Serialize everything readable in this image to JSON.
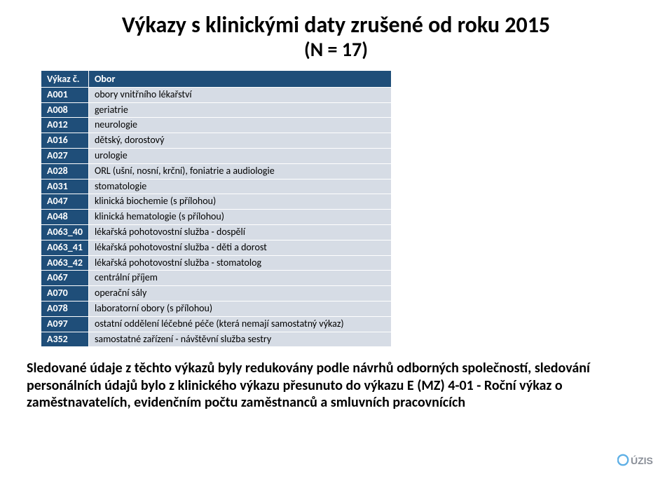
{
  "title": "Výkazy s klinickými daty zrušené od roku 2015",
  "subtitle": "(N = 17)",
  "table": {
    "header": {
      "code": "Výkaz č.",
      "obor": "Obor"
    },
    "header_bg": "#1f4e79",
    "header_fg": "#ffffff",
    "code_col_bg": "#1f4e79",
    "code_col_fg": "#ffffff",
    "obor_col_bg": "#d6dce5",
    "obor_col_fg": "#000000",
    "font_size": 14,
    "rows": [
      {
        "code": "A001",
        "obor": "obory vnitřního lékařství"
      },
      {
        "code": "A008",
        "obor": "geriatrie"
      },
      {
        "code": "A012",
        "obor": "neurologie"
      },
      {
        "code": "A016",
        "obor": "dětský, dorostový"
      },
      {
        "code": "A027",
        "obor": "urologie"
      },
      {
        "code": "A028",
        "obor": "ORL (ušní, nosní, krční), foniatrie a audiologie"
      },
      {
        "code": "A031",
        "obor": "stomatologie"
      },
      {
        "code": "A047",
        "obor": "klinická biochemie (s přílohou)"
      },
      {
        "code": "A048",
        "obor": "klinická hematologie (s přílohou)"
      },
      {
        "code": "A063_40",
        "obor": "lékařská pohotovostní služba - dospělí"
      },
      {
        "code": "A063_41",
        "obor": "lékařská pohotovostní služba - děti a dorost"
      },
      {
        "code": "A063_42",
        "obor": "lékařská pohotovostní služba - stomatolog"
      },
      {
        "code": "A067",
        "obor": "centrální příjem"
      },
      {
        "code": "A070",
        "obor": "operační sály"
      },
      {
        "code": "A078",
        "obor": "laboratorní obory (s přílohou)"
      },
      {
        "code": "A097",
        "obor": "ostatní oddělení léčebné péče (která nemají samostatný výkaz)"
      },
      {
        "code": "A352",
        "obor": "samostatné zařízení - návštěvní služba sestry"
      }
    ]
  },
  "body_text": "Sledované údaje z těchto výkazů byly redukovány podle návrhů odborných společností, sledování personálních údajů bylo z klinického výkazu přesunuto do výkazu E (MZ) 4-01 - Roční výkaz o zaměstnavatelích, evidenčním počtu zaměstnanců a smluvních pracovnících",
  "logo": {
    "text": "ÚZIS",
    "text_color": "#8a8f98",
    "circle_color": "#5fb0e6"
  },
  "colors": {
    "page_bg": "#ffffff",
    "text": "#000000"
  }
}
